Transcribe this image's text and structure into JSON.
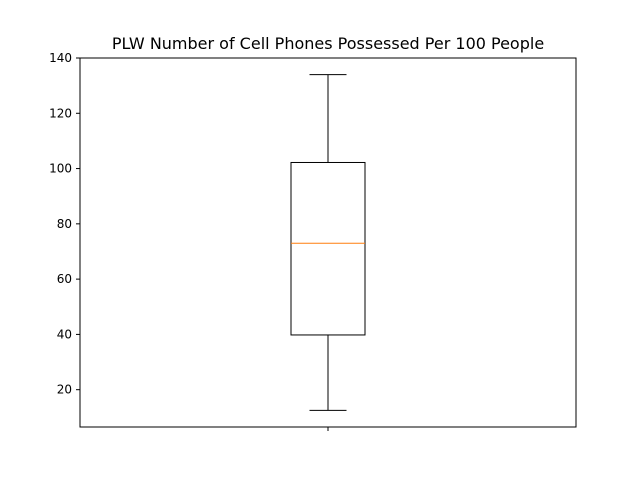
{
  "chart_data": {
    "type": "box",
    "title": "PLW Number of Cell Phones Possessed Per 100 People",
    "xlabel": "",
    "ylabel": "",
    "ylim": [
      6.5,
      140
    ],
    "yticks": [
      20,
      40,
      60,
      80,
      100,
      120,
      140
    ],
    "xtick_labels": [
      ""
    ],
    "grid": false,
    "box": {
      "whisker_low": 12.5,
      "q1": 39.8,
      "median": 73.0,
      "q3": 102.2,
      "whisker_high": 134.0
    },
    "colors": {
      "box": "#000000",
      "median": "#ff7f0e"
    }
  }
}
